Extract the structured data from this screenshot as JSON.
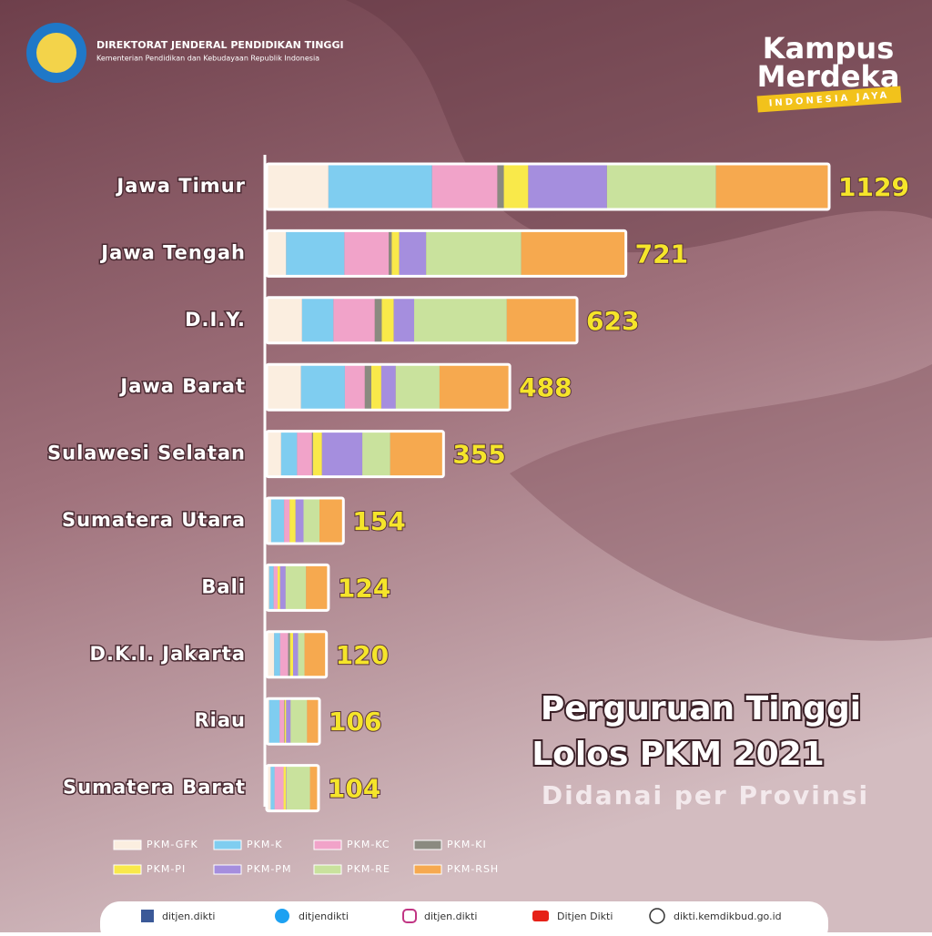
{
  "header": {
    "org": "DIREKTORAT JENDERAL PENDIDIKAN TINGGI",
    "ministry": "Kementerian Pendidikan dan Kebudayaan Republik Indonesia",
    "logo_line1": "Kampus",
    "logo_line2": "Merdeka",
    "logo_tag": "INDONESIA JAYA"
  },
  "chart_data": {
    "type": "stacked-bar-horizontal",
    "title_line1": "Perguruan Tinggi",
    "title_line2": "Lolos PKM 2021",
    "subtitle": "Didanai per Provinsi",
    "categories": [
      "Jawa Timur",
      "Jawa Tengah",
      "D.I.Y.",
      "Jawa Barat",
      "Sulawesi Selatan",
      "Sumatera Utara",
      "Bali",
      "D.K.I. Jakarta",
      "Riau",
      "Sumatera Barat"
    ],
    "totals": [
      1129,
      721,
      623,
      488,
      355,
      154,
      124,
      120,
      106,
      104
    ],
    "series": [
      {
        "name": "PKM-GFK",
        "color": "#fbeee0",
        "values": [
          124,
          39,
          71,
          69,
          29,
          9,
          5,
          15,
          5,
          8
        ]
      },
      {
        "name": "PKM-K",
        "color": "#7fcdf0",
        "values": [
          208,
          117,
          63,
          88,
          32,
          26,
          9,
          12,
          21,
          8
        ]
      },
      {
        "name": "PKM-KC",
        "color": "#f1a3c9",
        "values": [
          131,
          89,
          83,
          40,
          30,
          11,
          8,
          16,
          9,
          18
        ]
      },
      {
        "name": "PKM-KI",
        "color": "#8a8a80",
        "values": [
          13,
          6,
          14,
          13,
          2,
          0,
          0,
          4,
          1,
          0
        ]
      },
      {
        "name": "PKM-PI",
        "color": "#f9e94a",
        "values": [
          49,
          15,
          24,
          20,
          18,
          12,
          5,
          6,
          3,
          5
        ]
      },
      {
        "name": "PKM-PM",
        "color": "#a58ede",
        "values": [
          158,
          54,
          41,
          29,
          81,
          16,
          11,
          10,
          9,
          1
        ]
      },
      {
        "name": "PKM-RE",
        "color": "#c9e29d",
        "values": [
          219,
          191,
          186,
          88,
          56,
          32,
          41,
          13,
          33,
          47
        ]
      },
      {
        "name": "PKM-RSH",
        "color": "#f6a94f",
        "values": [
          227,
          210,
          141,
          141,
          107,
          48,
          45,
          44,
          25,
          17
        ]
      }
    ]
  },
  "footer": {
    "facebook": "ditjen.dikti",
    "twitter": "ditjendikti",
    "instagram": "ditjen.dikti",
    "youtube": "Ditjen Dikti",
    "website": "dikti.kemdikbud.go.id"
  }
}
